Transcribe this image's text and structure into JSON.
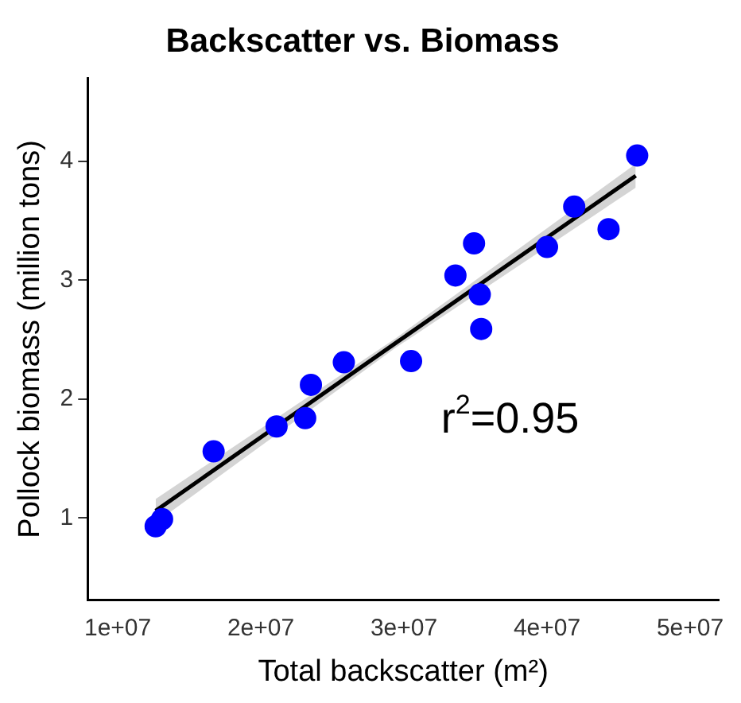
{
  "chart_data": {
    "type": "scatter",
    "title": "Backscatter vs. Biomass",
    "xlabel": "Total backscatter (m²)",
    "ylabel": "Pollock biomass (million tons)",
    "annotations": [
      "r$^{2}$=0.95"
    ],
    "xlim": [
      7900000,
      52000000
    ],
    "xticks": [
      {
        "value": 10000000,
        "label": "1e+07"
      },
      {
        "value": 20000000,
        "label": "2e+07"
      },
      {
        "value": 30000000,
        "label": "3e+07"
      },
      {
        "value": 40000000,
        "label": "4e+07"
      },
      {
        "value": 50000000,
        "label": "5e+07"
      }
    ],
    "ylim": [
      0.31,
      4.7
    ],
    "yticks": [
      1,
      2,
      3,
      4
    ],
    "grid": false,
    "legend": false,
    "series": [
      {
        "type": "scatter",
        "color": "#0000ff",
        "marker": "circle",
        "x": [
          12650000,
          13100000,
          16700000,
          21100000,
          23100000,
          23500000,
          25800000,
          30500000,
          33600000,
          34900000,
          35300000,
          35400000,
          40000000,
          41900000,
          44300000,
          46300000
        ],
        "values": [
          0.93,
          0.99,
          1.56,
          1.77,
          1.84,
          2.12,
          2.31,
          2.32,
          3.04,
          3.31,
          2.88,
          2.59,
          3.28,
          3.62,
          3.43,
          4.05
        ]
      },
      {
        "type": "line",
        "color": "#000000",
        "marker": "none",
        "line_style": "solid",
        "x": [
          12650000,
          29400000,
          46200000
        ],
        "values": [
          1.06,
          2.47,
          3.88
        ],
        "lower": [
          0.96,
          2.43,
          3.78
        ],
        "upper": [
          1.16,
          2.51,
          3.98
        ]
      }
    ]
  }
}
